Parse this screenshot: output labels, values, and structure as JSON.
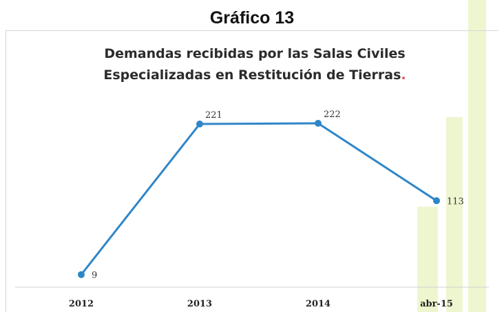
{
  "figure_label": "Gráfico 13",
  "chart_data": {
    "type": "line",
    "title_lines": [
      "Demandas recibidas por las Salas Civiles",
      "Especializadas en Restitución de Tierras"
    ],
    "title_end": ".",
    "categories": [
      "2012",
      "2013",
      "2014",
      "abr-15"
    ],
    "series": [
      {
        "values": [
          9,
          221,
          222,
          113
        ],
        "color": "#2e86c8"
      }
    ],
    "data_labels": [
      "9",
      "221",
      "222",
      "113"
    ],
    "xlabel": "",
    "ylabel": "",
    "ylim": [
      0,
      222
    ],
    "grid": false,
    "legend": "none"
  }
}
